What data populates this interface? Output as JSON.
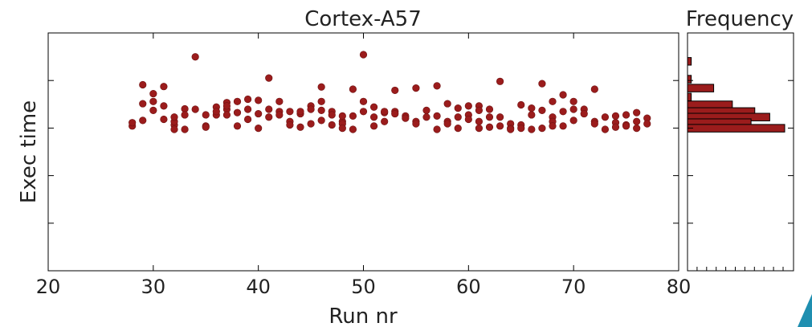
{
  "chart_data": [
    {
      "type": "scatter",
      "title": "Cortex-A57",
      "xlabel": "Run nr",
      "ylabel": "Exec time",
      "xlim": [
        20,
        80
      ],
      "ylim": [
        0,
        1
      ],
      "xticks": [
        20,
        30,
        40,
        50,
        60,
        70,
        80
      ],
      "ytick_count": 6,
      "yticks_labeled": false,
      "grid": false,
      "marker_color": "#9b1c1c",
      "points": [
        [
          28,
          0.68
        ],
        [
          28,
          0.695
        ],
        [
          29,
          0.865
        ],
        [
          29,
          0.78
        ],
        [
          29,
          0.705
        ],
        [
          30,
          0.825
        ],
        [
          30,
          0.79
        ],
        [
          30,
          0.75
        ],
        [
          31,
          0.857
        ],
        [
          31,
          0.71
        ],
        [
          31,
          0.77
        ],
        [
          32,
          0.685
        ],
        [
          32,
          0.7
        ],
        [
          32,
          0.665
        ],
        [
          32,
          0.72
        ],
        [
          33,
          0.757
        ],
        [
          33,
          0.73
        ],
        [
          33,
          0.665
        ],
        [
          34,
          0.99
        ],
        [
          34,
          0.755
        ],
        [
          35,
          0.73
        ],
        [
          35,
          0.68
        ],
        [
          35,
          0.675
        ],
        [
          36,
          0.765
        ],
        [
          36,
          0.73
        ],
        [
          36,
          0.745
        ],
        [
          37,
          0.755
        ],
        [
          37,
          0.73
        ],
        [
          37,
          0.785
        ],
        [
          37,
          0.77
        ],
        [
          38,
          0.74
        ],
        [
          38,
          0.79
        ],
        [
          38,
          0.68
        ],
        [
          39,
          0.8
        ],
        [
          39,
          0.755
        ],
        [
          39,
          0.71
        ],
        [
          40,
          0.735
        ],
        [
          40,
          0.795
        ],
        [
          40,
          0.67
        ],
        [
          41,
          0.895
        ],
        [
          41,
          0.755
        ],
        [
          41,
          0.72
        ],
        [
          42,
          0.79
        ],
        [
          42,
          0.745
        ],
        [
          42,
          0.73
        ],
        [
          43,
          0.745
        ],
        [
          43,
          0.7
        ],
        [
          43,
          0.685
        ],
        [
          44,
          0.735
        ],
        [
          44,
          0.745
        ],
        [
          44,
          0.675
        ],
        [
          45,
          0.77
        ],
        [
          45,
          0.755
        ],
        [
          45,
          0.69
        ],
        [
          46,
          0.855
        ],
        [
          46,
          0.79
        ],
        [
          46,
          0.75
        ],
        [
          46,
          0.705
        ],
        [
          47,
          0.745
        ],
        [
          47,
          0.73
        ],
        [
          47,
          0.685
        ],
        [
          48,
          0.7
        ],
        [
          48,
          0.725
        ],
        [
          48,
          0.69
        ],
        [
          48,
          0.67
        ],
        [
          49,
          0.845
        ],
        [
          49,
          0.725
        ],
        [
          49,
          0.665
        ],
        [
          50,
          1.0
        ],
        [
          50,
          0.79
        ],
        [
          50,
          0.745
        ],
        [
          51,
          0.72
        ],
        [
          51,
          0.765
        ],
        [
          51,
          0.68
        ],
        [
          52,
          0.74
        ],
        [
          52,
          0.745
        ],
        [
          52,
          0.7
        ],
        [
          53,
          0.84
        ],
        [
          53,
          0.745
        ],
        [
          53,
          0.735
        ],
        [
          54,
          0.725
        ],
        [
          54,
          0.715
        ],
        [
          55,
          0.85
        ],
        [
          55,
          0.7
        ],
        [
          55,
          0.69
        ],
        [
          56,
          0.75
        ],
        [
          56,
          0.72
        ],
        [
          57,
          0.86
        ],
        [
          57,
          0.725
        ],
        [
          57,
          0.665
        ],
        [
          58,
          0.78
        ],
        [
          58,
          0.7
        ],
        [
          58,
          0.69
        ],
        [
          59,
          0.76
        ],
        [
          59,
          0.72
        ],
        [
          59,
          0.67
        ],
        [
          60,
          0.77
        ],
        [
          60,
          0.73
        ],
        [
          60,
          0.71
        ],
        [
          61,
          0.77
        ],
        [
          61,
          0.75
        ],
        [
          61,
          0.7
        ],
        [
          61,
          0.67
        ],
        [
          62,
          0.755
        ],
        [
          62,
          0.72
        ],
        [
          62,
          0.675
        ],
        [
          63,
          0.88
        ],
        [
          63,
          0.72
        ],
        [
          63,
          0.68
        ],
        [
          64,
          0.69
        ],
        [
          64,
          0.67
        ],
        [
          64,
          0.665
        ],
        [
          65,
          0.775
        ],
        [
          65,
          0.685
        ],
        [
          65,
          0.67
        ],
        [
          66,
          0.76
        ],
        [
          66,
          0.73
        ],
        [
          66,
          0.665
        ],
        [
          67,
          0.87
        ],
        [
          67,
          0.75
        ],
        [
          67,
          0.67
        ],
        [
          68,
          0.79
        ],
        [
          68,
          0.72
        ],
        [
          68,
          0.7
        ],
        [
          68,
          0.68
        ],
        [
          69,
          0.82
        ],
        [
          69,
          0.745
        ],
        [
          69,
          0.68
        ],
        [
          70,
          0.79
        ],
        [
          70,
          0.755
        ],
        [
          70,
          0.705
        ],
        [
          71,
          0.755
        ],
        [
          71,
          0.735
        ],
        [
          72,
          0.845
        ],
        [
          72,
          0.7
        ],
        [
          72,
          0.69
        ],
        [
          73,
          0.72
        ],
        [
          73,
          0.665
        ],
        [
          74,
          0.725
        ],
        [
          74,
          0.695
        ],
        [
          74,
          0.675
        ],
        [
          75,
          0.73
        ],
        [
          75,
          0.685
        ],
        [
          75,
          0.68
        ],
        [
          76,
          0.74
        ],
        [
          76,
          0.7
        ],
        [
          76,
          0.67
        ],
        [
          77,
          0.715
        ],
        [
          77,
          0.69
        ]
      ]
    },
    {
      "type": "bar",
      "orientation": "horizontal",
      "title": "Frequency",
      "bar_color": "#9b1c1c",
      "xticks_labeled": false,
      "bins": [
        {
          "y": 0.97,
          "count": 1
        },
        {
          "y": 0.93,
          "count": 0
        },
        {
          "y": 0.89,
          "count": 1
        },
        {
          "y": 0.85,
          "count": 7
        },
        {
          "y": 0.81,
          "count": 1
        },
        {
          "y": 0.775,
          "count": 12
        },
        {
          "y": 0.745,
          "count": 18
        },
        {
          "y": 0.72,
          "count": 22
        },
        {
          "y": 0.695,
          "count": 17
        },
        {
          "y": 0.67,
          "count": 26
        }
      ]
    }
  ]
}
